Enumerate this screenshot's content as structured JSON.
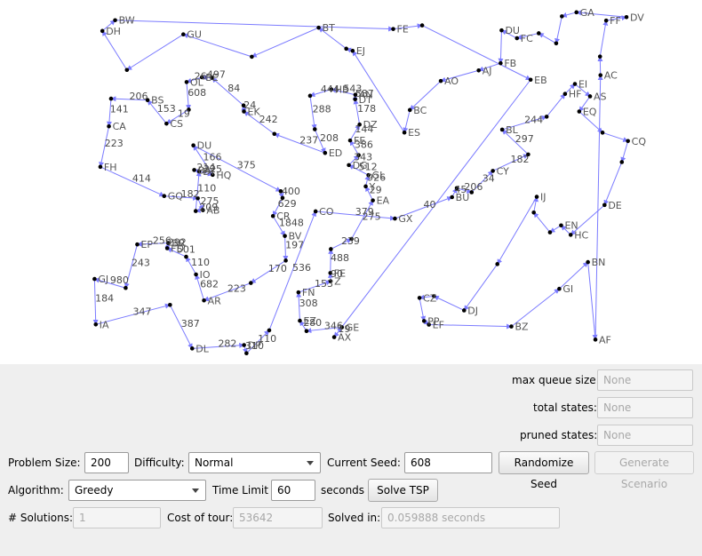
{
  "stats": {
    "max_queue_size": {
      "label": "max queue size:",
      "value": "None"
    },
    "total_states": {
      "label": "total states:",
      "value": "None"
    },
    "pruned_states": {
      "label": "pruned states:",
      "value": "None"
    }
  },
  "controls": {
    "problem_size": {
      "label": "Problem Size:",
      "value": "200"
    },
    "difficulty": {
      "label": "Difficulty:",
      "value": "Normal"
    },
    "current_seed": {
      "label": "Current Seed:",
      "value": "608"
    },
    "randomize_seed_label": "Randomize Seed",
    "generate_scenario_label": "Generate Scenario",
    "algorithm": {
      "label": "Algorithm:",
      "value": "Greedy"
    },
    "time_limit": {
      "label": "Time Limit",
      "value": "60",
      "unit": "seconds"
    },
    "solve_label": "Solve TSP"
  },
  "results": {
    "solutions": {
      "label": "# Solutions:",
      "value": "1"
    },
    "cost": {
      "label": "Cost of tour:",
      "value": "53642"
    },
    "solved_in": {
      "label": "Solved in:",
      "value": "0.059888 seconds"
    }
  },
  "graph": {
    "edge_color": "#7b7bff",
    "city_color": "#000000",
    "city_labels": [
      "AX",
      "HQ",
      "GQ",
      "BW",
      "CR",
      "DH",
      "EA",
      "BS",
      "IA",
      "AR",
      "GI",
      "ED",
      "HB",
      "DE",
      "EF",
      "FE",
      "DJ",
      "BN",
      "HC",
      "BT",
      "AO",
      "BL",
      "DG",
      "BR",
      "GL",
      "DU",
      "CY",
      "FE",
      "EI",
      "BZ",
      "CQ",
      "AS",
      "ES",
      "FN",
      "CZ",
      "EJ",
      "DV",
      "EK",
      "IJ",
      "CS",
      "DP",
      "AF",
      "GU",
      "AC",
      "FD",
      "CO",
      "BC",
      "FC",
      "BE",
      "GX",
      "DY",
      "HF",
      "BA",
      "AJ",
      "DU",
      "EB",
      "BU",
      "DL",
      "FB",
      "EZ",
      "DZ",
      "BV",
      "AB",
      "FH",
      "FF",
      "GE",
      "EP",
      "EN",
      "AN",
      "CA",
      "FE",
      "PP",
      "IO",
      "GJ",
      "OL",
      "EQ",
      "GA",
      "Y",
      "DT",
      "Z"
    ],
    "edge_labels": [
      "19",
      "346",
      "280",
      "308",
      "153",
      "90",
      "488",
      "239",
      "275",
      "29",
      "926",
      "512",
      "343",
      "386",
      "144",
      "178",
      "587",
      "543",
      "444",
      "288",
      "208",
      "237",
      "242",
      "24",
      "84",
      "497",
      "26",
      "608",
      "19",
      "153",
      "206",
      "141",
      "223",
      "414",
      "182",
      "275",
      "209",
      "110",
      "214",
      "225",
      "166",
      "375",
      "400",
      "629",
      "1848",
      "197",
      "170",
      "223",
      "682",
      "110",
      "501",
      "292",
      "256",
      "243",
      "980",
      "184",
      "347",
      "387",
      "282",
      "310",
      "110",
      "536",
      "379",
      "40",
      "45",
      "206",
      "34",
      "182",
      "297",
      "244"
    ]
  }
}
